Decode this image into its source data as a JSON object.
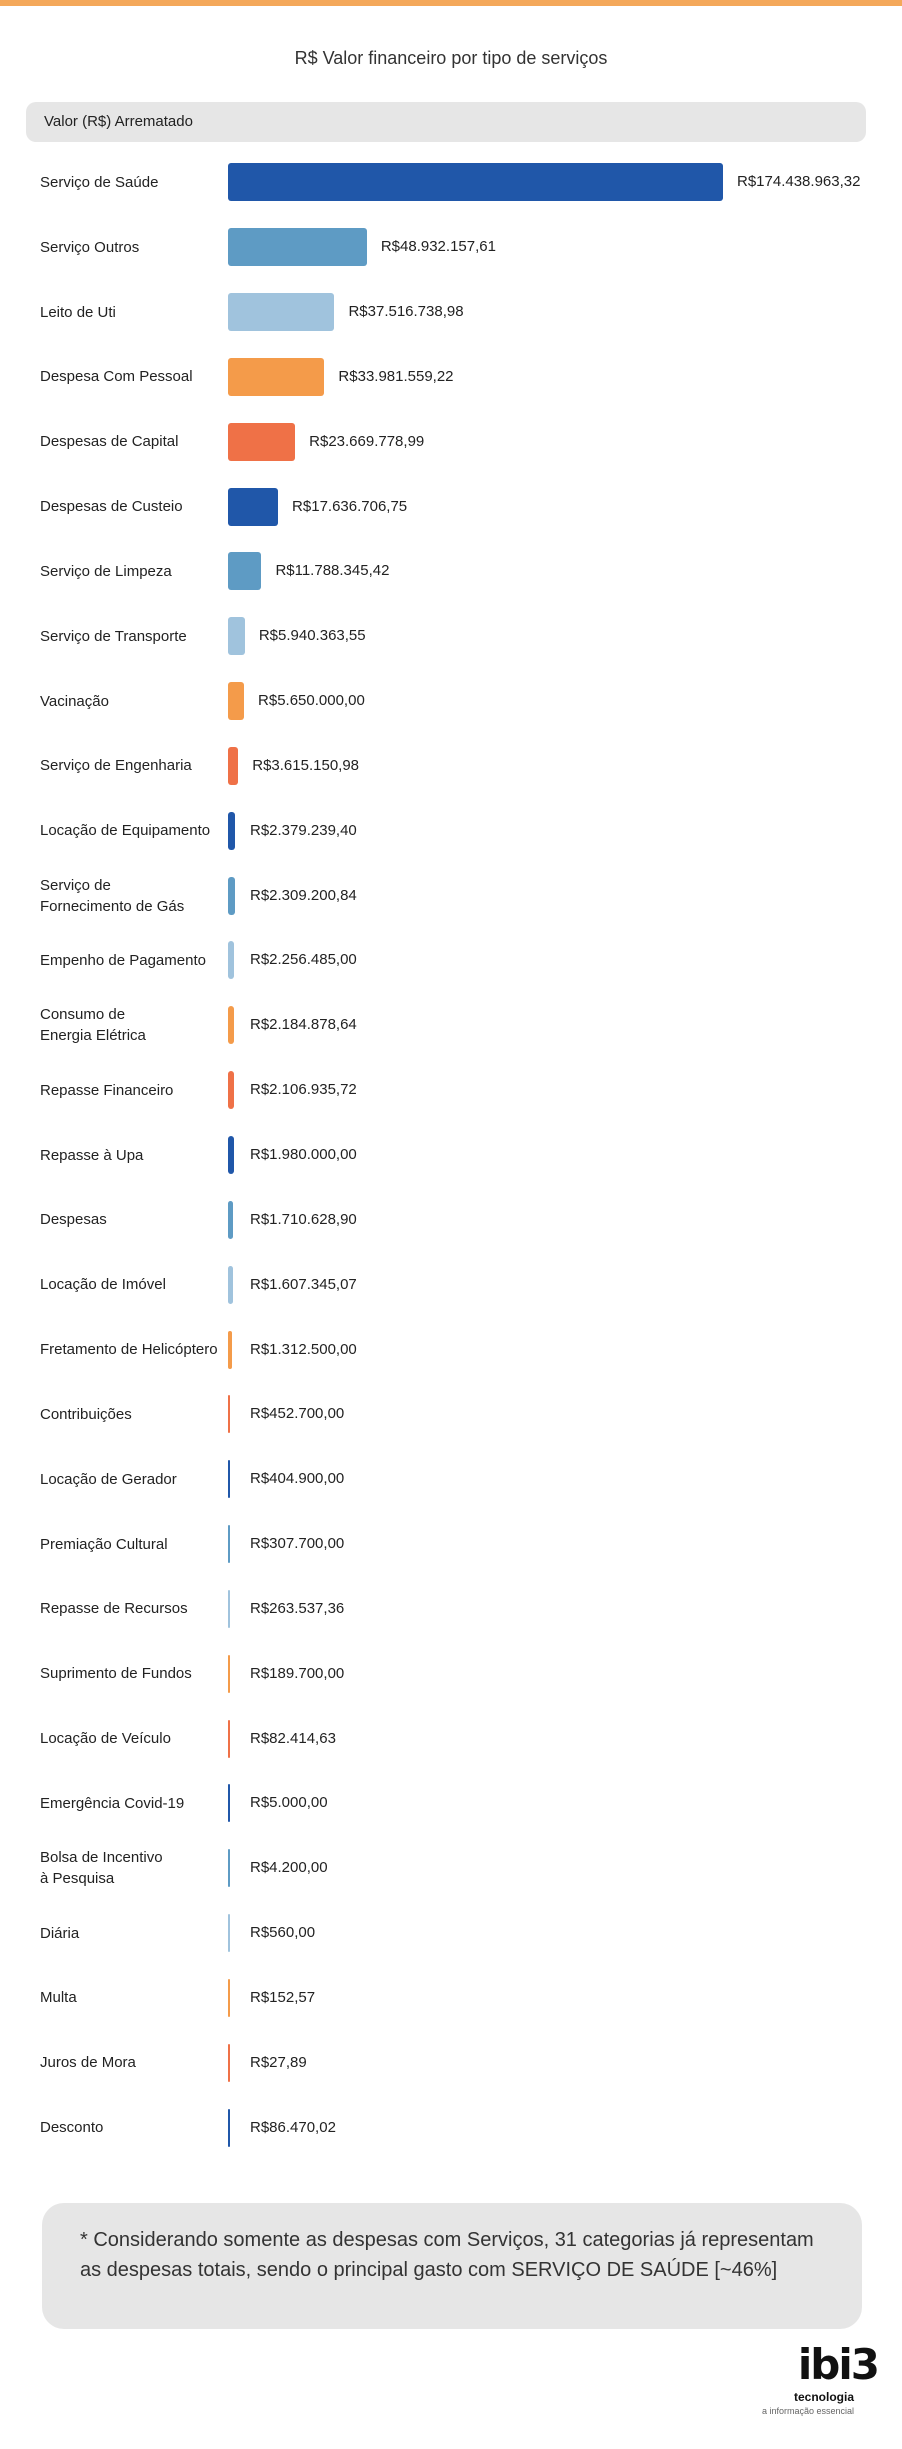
{
  "header": {
    "title": "R$ Valor financeiro por tipo de serviços",
    "pill_label": "Valor (R$) Arrematado"
  },
  "chart_data": {
    "type": "bar",
    "orientation": "horizontal",
    "title": "R$ Valor financeiro por tipo de serviços",
    "series_label": "Valor (R$) Arrematado",
    "colors_cycle": [
      "#2057a9",
      "#5e9bc4",
      "#a0c3dd",
      "#f49b4a",
      "#ef7147"
    ],
    "items": [
      {
        "label": "Serviço de Saúde",
        "value": 174438963.32,
        "value_label": "R$174.438.963,32"
      },
      {
        "label": "Serviço Outros",
        "value": 48932157.61,
        "value_label": "R$48.932.157,61"
      },
      {
        "label": "Leito de Uti",
        "value": 37516738.98,
        "value_label": "R$37.516.738,98"
      },
      {
        "label": "Despesa Com Pessoal",
        "value": 33981559.22,
        "value_label": "R$33.981.559,22"
      },
      {
        "label": "Despesas de Capital",
        "value": 23669778.99,
        "value_label": "R$23.669.778,99"
      },
      {
        "label": "Despesas de Custeio",
        "value": 17636706.75,
        "value_label": "R$17.636.706,75"
      },
      {
        "label": "Serviço de Limpeza",
        "value": 11788345.42,
        "value_label": "R$11.788.345,42"
      },
      {
        "label": "Serviço de Transporte",
        "value": 5940363.55,
        "value_label": "R$5.940.363,55"
      },
      {
        "label": "Vacinação",
        "value": 5650000.0,
        "value_label": "R$5.650.000,00"
      },
      {
        "label": "Serviço de Engenharia",
        "value": 3615150.98,
        "value_label": "R$3.615.150,98"
      },
      {
        "label": "Locação de Equipamento",
        "value": 2379239.4,
        "value_label": "R$2.379.239,40"
      },
      {
        "label": "Serviço de\nFornecimento de Gás",
        "value": 2309200.84,
        "value_label": "R$2.309.200,84"
      },
      {
        "label": "Empenho de Pagamento",
        "value": 2256485.0,
        "value_label": "R$2.256.485,00"
      },
      {
        "label": "Consumo de\nEnergia Elétrica",
        "value": 2184878.64,
        "value_label": "R$2.184.878,64"
      },
      {
        "label": "Repasse Financeiro",
        "value": 2106935.72,
        "value_label": "R$2.106.935,72"
      },
      {
        "label": "Repasse à Upa",
        "value": 1980000.0,
        "value_label": "R$1.980.000,00"
      },
      {
        "label": "Despesas",
        "value": 1710628.9,
        "value_label": "R$1.710.628,90"
      },
      {
        "label": "Locação de Imóvel",
        "value": 1607345.07,
        "value_label": "R$1.607.345,07"
      },
      {
        "label": "Fretamento de Helicóptero",
        "value": 1312500.0,
        "value_label": "R$1.312.500,00"
      },
      {
        "label": "Contribuições",
        "value": 452700.0,
        "value_label": "R$452.700,00"
      },
      {
        "label": "Locação de Gerador",
        "value": 404900.0,
        "value_label": "R$404.900,00"
      },
      {
        "label": "Premiação Cultural",
        "value": 307700.0,
        "value_label": "R$307.700,00"
      },
      {
        "label": "Repasse de Recursos",
        "value": 263537.36,
        "value_label": "R$263.537,36"
      },
      {
        "label": "Suprimento de Fundos",
        "value": 189700.0,
        "value_label": "R$189.700,00"
      },
      {
        "label": "Locação de Veículo",
        "value": 82414.63,
        "value_label": "R$82.414,63"
      },
      {
        "label": "Emergência Covid-19",
        "value": 5000.0,
        "value_label": "R$5.000,00"
      },
      {
        "label": "Bolsa de Incentivo\nà Pesquisa",
        "value": 4200.0,
        "value_label": "R$4.200,00"
      },
      {
        "label": "Diária",
        "value": 560.0,
        "value_label": "R$560,00"
      },
      {
        "label": "Multa",
        "value": 152.57,
        "value_label": "R$152,57"
      },
      {
        "label": "Juros de Mora",
        "value": 27.89,
        "value_label": "R$27,89"
      },
      {
        "label": "Desconto",
        "value": 86470.02,
        "value_label": "R$86.470,02"
      }
    ]
  },
  "footer_note": "* Considerando somente as despesas com Serviços, 31 categorias já representam as despesas totais, sendo o principal gasto com SERVIÇO DE SAÚDE [~46%]",
  "logo": {
    "mark": "ibi3",
    "name": "tecnologia",
    "slogan": "a informação essencial"
  }
}
